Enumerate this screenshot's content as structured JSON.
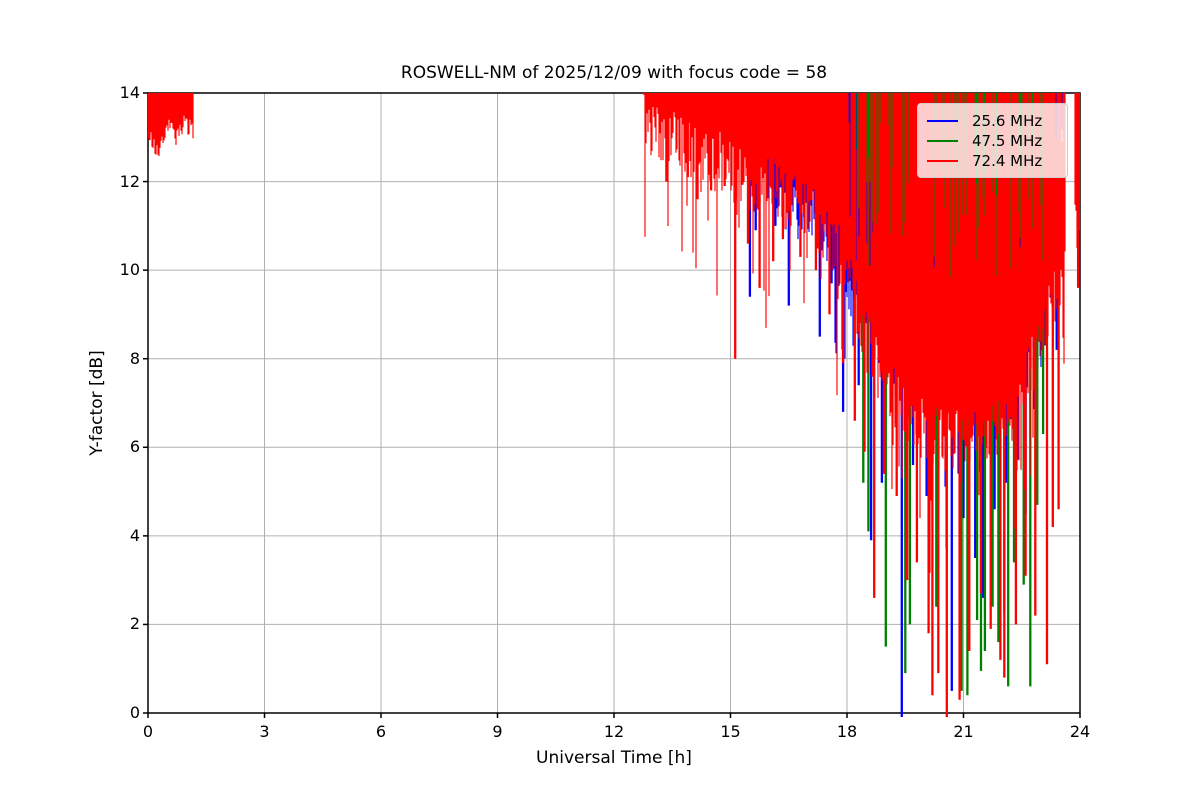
{
  "figure": {
    "background": "#ffffff",
    "grid_color": "#b0b0b0",
    "spine_color": "#000000",
    "legend_border_color": "#cccccc"
  },
  "chart_data": {
    "type": "line",
    "title": "ROSWELL-NM of 2025/12/09 with focus code = 58",
    "xlabel": "Universal Time [h]",
    "ylabel": "Y-factor [dB]",
    "xlim": [
      0,
      24
    ],
    "ylim": [
      0,
      14
    ],
    "xticks": [
      0,
      3,
      6,
      9,
      12,
      15,
      18,
      21,
      24
    ],
    "yticks": [
      0,
      2,
      4,
      6,
      8,
      10,
      12,
      14
    ],
    "grid": true,
    "legend_position": "upper right",
    "series": [
      {
        "name": "25.6 MHz",
        "color": "#0000ff",
        "bands": [
          {
            "t0": 15.3,
            "t1": 23.55,
            "top": 14,
            "floor": [
              [
                15.3,
                12.7
              ],
              [
                15.6,
                12.3
              ],
              [
                16.0,
                12.1
              ],
              [
                16.5,
                11.7
              ],
              [
                17.0,
                11.4
              ],
              [
                17.5,
                10.6
              ],
              [
                18.0,
                9.7
              ],
              [
                18.4,
                9.0
              ],
              [
                18.8,
                8.4
              ],
              [
                19.2,
                7.9
              ],
              [
                19.6,
                7.6
              ],
              [
                20.0,
                7.4
              ],
              [
                20.4,
                7.2
              ],
              [
                20.8,
                7.1
              ],
              [
                21.2,
                7.2
              ],
              [
                21.6,
                7.4
              ],
              [
                22.0,
                7.6
              ],
              [
                22.4,
                8.0
              ],
              [
                22.8,
                8.6
              ],
              [
                23.2,
                9.6
              ],
              [
                23.55,
                12.9
              ]
            ],
            "amp": 0.6,
            "dip_prob": 0.12,
            "dip_extra": 2.0
          }
        ],
        "spikes": [
          [
            15.5,
            9.4
          ],
          [
            15.65,
            10.9
          ],
          [
            16.15,
            11.0
          ],
          [
            16.5,
            9.2
          ],
          [
            16.9,
            11.2
          ],
          [
            17.3,
            8.5
          ],
          [
            17.6,
            9.7
          ],
          [
            17.9,
            6.8
          ],
          [
            18.3,
            7.4
          ],
          [
            18.62,
            3.9
          ],
          [
            18.9,
            5.2
          ],
          [
            19.41,
            0.0
          ],
          [
            19.7,
            5.6
          ],
          [
            20.05,
            4.9
          ],
          [
            20.35,
            4.7
          ],
          [
            20.7,
            0.5
          ],
          [
            21.0,
            4.4
          ],
          [
            21.3,
            3.5
          ],
          [
            21.5,
            2.6
          ],
          [
            21.8,
            4.6
          ],
          [
            22.1,
            5.2
          ],
          [
            22.35,
            5.8
          ],
          [
            22.6,
            4.5
          ],
          [
            22.9,
            7.8
          ],
          [
            23.1,
            8.3
          ],
          [
            23.4,
            8.2
          ]
        ]
      },
      {
        "name": "47.5 MHz",
        "color": "#008000",
        "bands": [
          {
            "t0": 18.25,
            "t1": 23.2,
            "top": 14,
            "floor": [
              [
                18.25,
                11.9
              ],
              [
                18.5,
                11.3
              ],
              [
                18.8,
                10.9
              ],
              [
                19.1,
                10.6
              ],
              [
                19.4,
                10.7
              ],
              [
                19.7,
                10.4
              ],
              [
                20.0,
                10.5
              ],
              [
                20.3,
                10.4
              ],
              [
                20.6,
                10.2
              ],
              [
                20.9,
                9.9
              ],
              [
                21.2,
                9.7
              ],
              [
                21.5,
                9.5
              ],
              [
                21.8,
                9.6
              ],
              [
                22.1,
                9.8
              ],
              [
                22.4,
                10.0
              ],
              [
                22.7,
                10.3
              ],
              [
                23.0,
                10.9
              ],
              [
                23.2,
                11.6
              ]
            ],
            "amp": 0.9,
            "dip_prob": 0.16,
            "dip_extra": 2.6
          }
        ],
        "spikes": [
          [
            18.42,
            5.2
          ],
          [
            18.55,
            4.1
          ],
          [
            19.0,
            1.5
          ],
          [
            19.5,
            0.9
          ],
          [
            19.62,
            2.0
          ],
          [
            20.3,
            2.4
          ],
          [
            20.95,
            0.5
          ],
          [
            21.1,
            0.4
          ],
          [
            21.35,
            2.1
          ],
          [
            21.45,
            0.95
          ],
          [
            21.55,
            1.4
          ],
          [
            21.75,
            2.4
          ],
          [
            21.9,
            1.6
          ],
          [
            22.05,
            2.3
          ],
          [
            22.15,
            0.6
          ],
          [
            22.3,
            3.4
          ],
          [
            22.55,
            2.9
          ],
          [
            22.72,
            0.6
          ],
          [
            22.9,
            4.7
          ],
          [
            23.05,
            6.3
          ]
        ]
      },
      {
        "name": "72.4 MHz",
        "color": "#ff0000",
        "bands": [
          {
            "t0": 0.0,
            "t1": 1.16,
            "top": 14,
            "floor": [
              [
                0,
                13.0
              ],
              [
                0.1,
                12.9
              ],
              [
                0.2,
                12.7
              ],
              [
                0.28,
                12.6
              ],
              [
                0.4,
                13.0
              ],
              [
                0.5,
                13.25
              ],
              [
                0.62,
                13.35
              ],
              [
                0.72,
                12.95
              ],
              [
                0.8,
                13.25
              ],
              [
                0.9,
                13.3
              ],
              [
                1.0,
                13.2
              ],
              [
                1.16,
                13.15
              ]
            ],
            "amp": 0.22,
            "dip_prob": 0.08,
            "dip_extra": 0.4
          },
          {
            "t0": 12.75,
            "t1": 23.62,
            "top": 14,
            "floor": [
              [
                12.75,
                13.5
              ],
              [
                13.0,
                13.15
              ],
              [
                13.2,
                13.0
              ],
              [
                13.4,
                12.85
              ],
              [
                13.7,
                12.9
              ],
              [
                14.0,
                12.6
              ],
              [
                14.3,
                12.5
              ],
              [
                14.6,
                12.55
              ],
              [
                14.9,
                12.3
              ],
              [
                15.2,
                12.1
              ],
              [
                15.5,
                11.95
              ],
              [
                15.8,
                11.8
              ],
              [
                16.1,
                11.9
              ],
              [
                16.4,
                11.6
              ],
              [
                16.7,
                11.5
              ],
              [
                17.0,
                11.3
              ],
              [
                17.3,
                11.0
              ],
              [
                17.6,
                10.7
              ],
              [
                17.9,
                10.2
              ],
              [
                18.2,
                9.3
              ],
              [
                18.5,
                8.4
              ],
              [
                18.8,
                7.8
              ],
              [
                19.1,
                7.3
              ],
              [
                19.4,
                6.9
              ],
              [
                19.7,
                6.6
              ],
              [
                20.0,
                6.4
              ],
              [
                20.3,
                6.2
              ],
              [
                20.6,
                6.1
              ],
              [
                20.9,
                6.2
              ],
              [
                21.2,
                6.3
              ],
              [
                21.5,
                6.4
              ],
              [
                21.8,
                6.5
              ],
              [
                22.1,
                6.6
              ],
              [
                22.4,
                7.0
              ],
              [
                22.7,
                7.6
              ],
              [
                23.0,
                8.6
              ],
              [
                23.2,
                9.2
              ],
              [
                23.4,
                9.8
              ],
              [
                23.62,
                10.8
              ]
            ],
            "amp": 0.7,
            "dip_prob": 0.14,
            "dip_extra": 3.0,
            "ragged": {
              "t0": 18.05,
              "t1": 23.62,
              "prob": 0.32,
              "top_min": 9.8,
              "top_max": 13.6
            }
          },
          {
            "t0": 23.86,
            "t1": 24.0,
            "top": 14,
            "floor": [
              [
                23.86,
                11.6
              ],
              [
                23.92,
                10.6
              ],
              [
                24.0,
                10.9
              ]
            ],
            "amp": 0.5,
            "dip_prob": 0.1,
            "dip_extra": 1.0
          }
        ],
        "spikes": [
          [
            13.35,
            12.0
          ],
          [
            13.9,
            12.1
          ],
          [
            14.15,
            11.6
          ],
          [
            14.5,
            11.8
          ],
          [
            14.85,
            11.9
          ],
          [
            15.12,
            8.0
          ],
          [
            15.45,
            10.6
          ],
          [
            15.75,
            9.6
          ],
          [
            16.1,
            10.2
          ],
          [
            16.35,
            10.7
          ],
          [
            16.8,
            10.3
          ],
          [
            17.2,
            10.0
          ],
          [
            17.55,
            9.0
          ],
          [
            17.9,
            7.9
          ],
          [
            18.2,
            6.6
          ],
          [
            18.45,
            5.9
          ],
          [
            18.7,
            2.6
          ],
          [
            18.95,
            5.4
          ],
          [
            19.28,
            4.9
          ],
          [
            19.55,
            3.0
          ],
          [
            19.8,
            3.4
          ],
          [
            20.1,
            1.8
          ],
          [
            20.2,
            0.4
          ],
          [
            20.35,
            0.9
          ],
          [
            20.57,
            0.0
          ],
          [
            20.9,
            0.3
          ],
          [
            21.15,
            1.4
          ],
          [
            21.45,
            2.7
          ],
          [
            21.7,
            1.9
          ],
          [
            21.95,
            1.2
          ],
          [
            22.05,
            0.8
          ],
          [
            22.35,
            2.0
          ],
          [
            22.6,
            3.1
          ],
          [
            22.85,
            2.2
          ],
          [
            23.15,
            1.1
          ],
          [
            23.3,
            4.2
          ],
          [
            23.45,
            4.6
          ],
          [
            23.95,
            9.6
          ]
        ]
      }
    ]
  }
}
